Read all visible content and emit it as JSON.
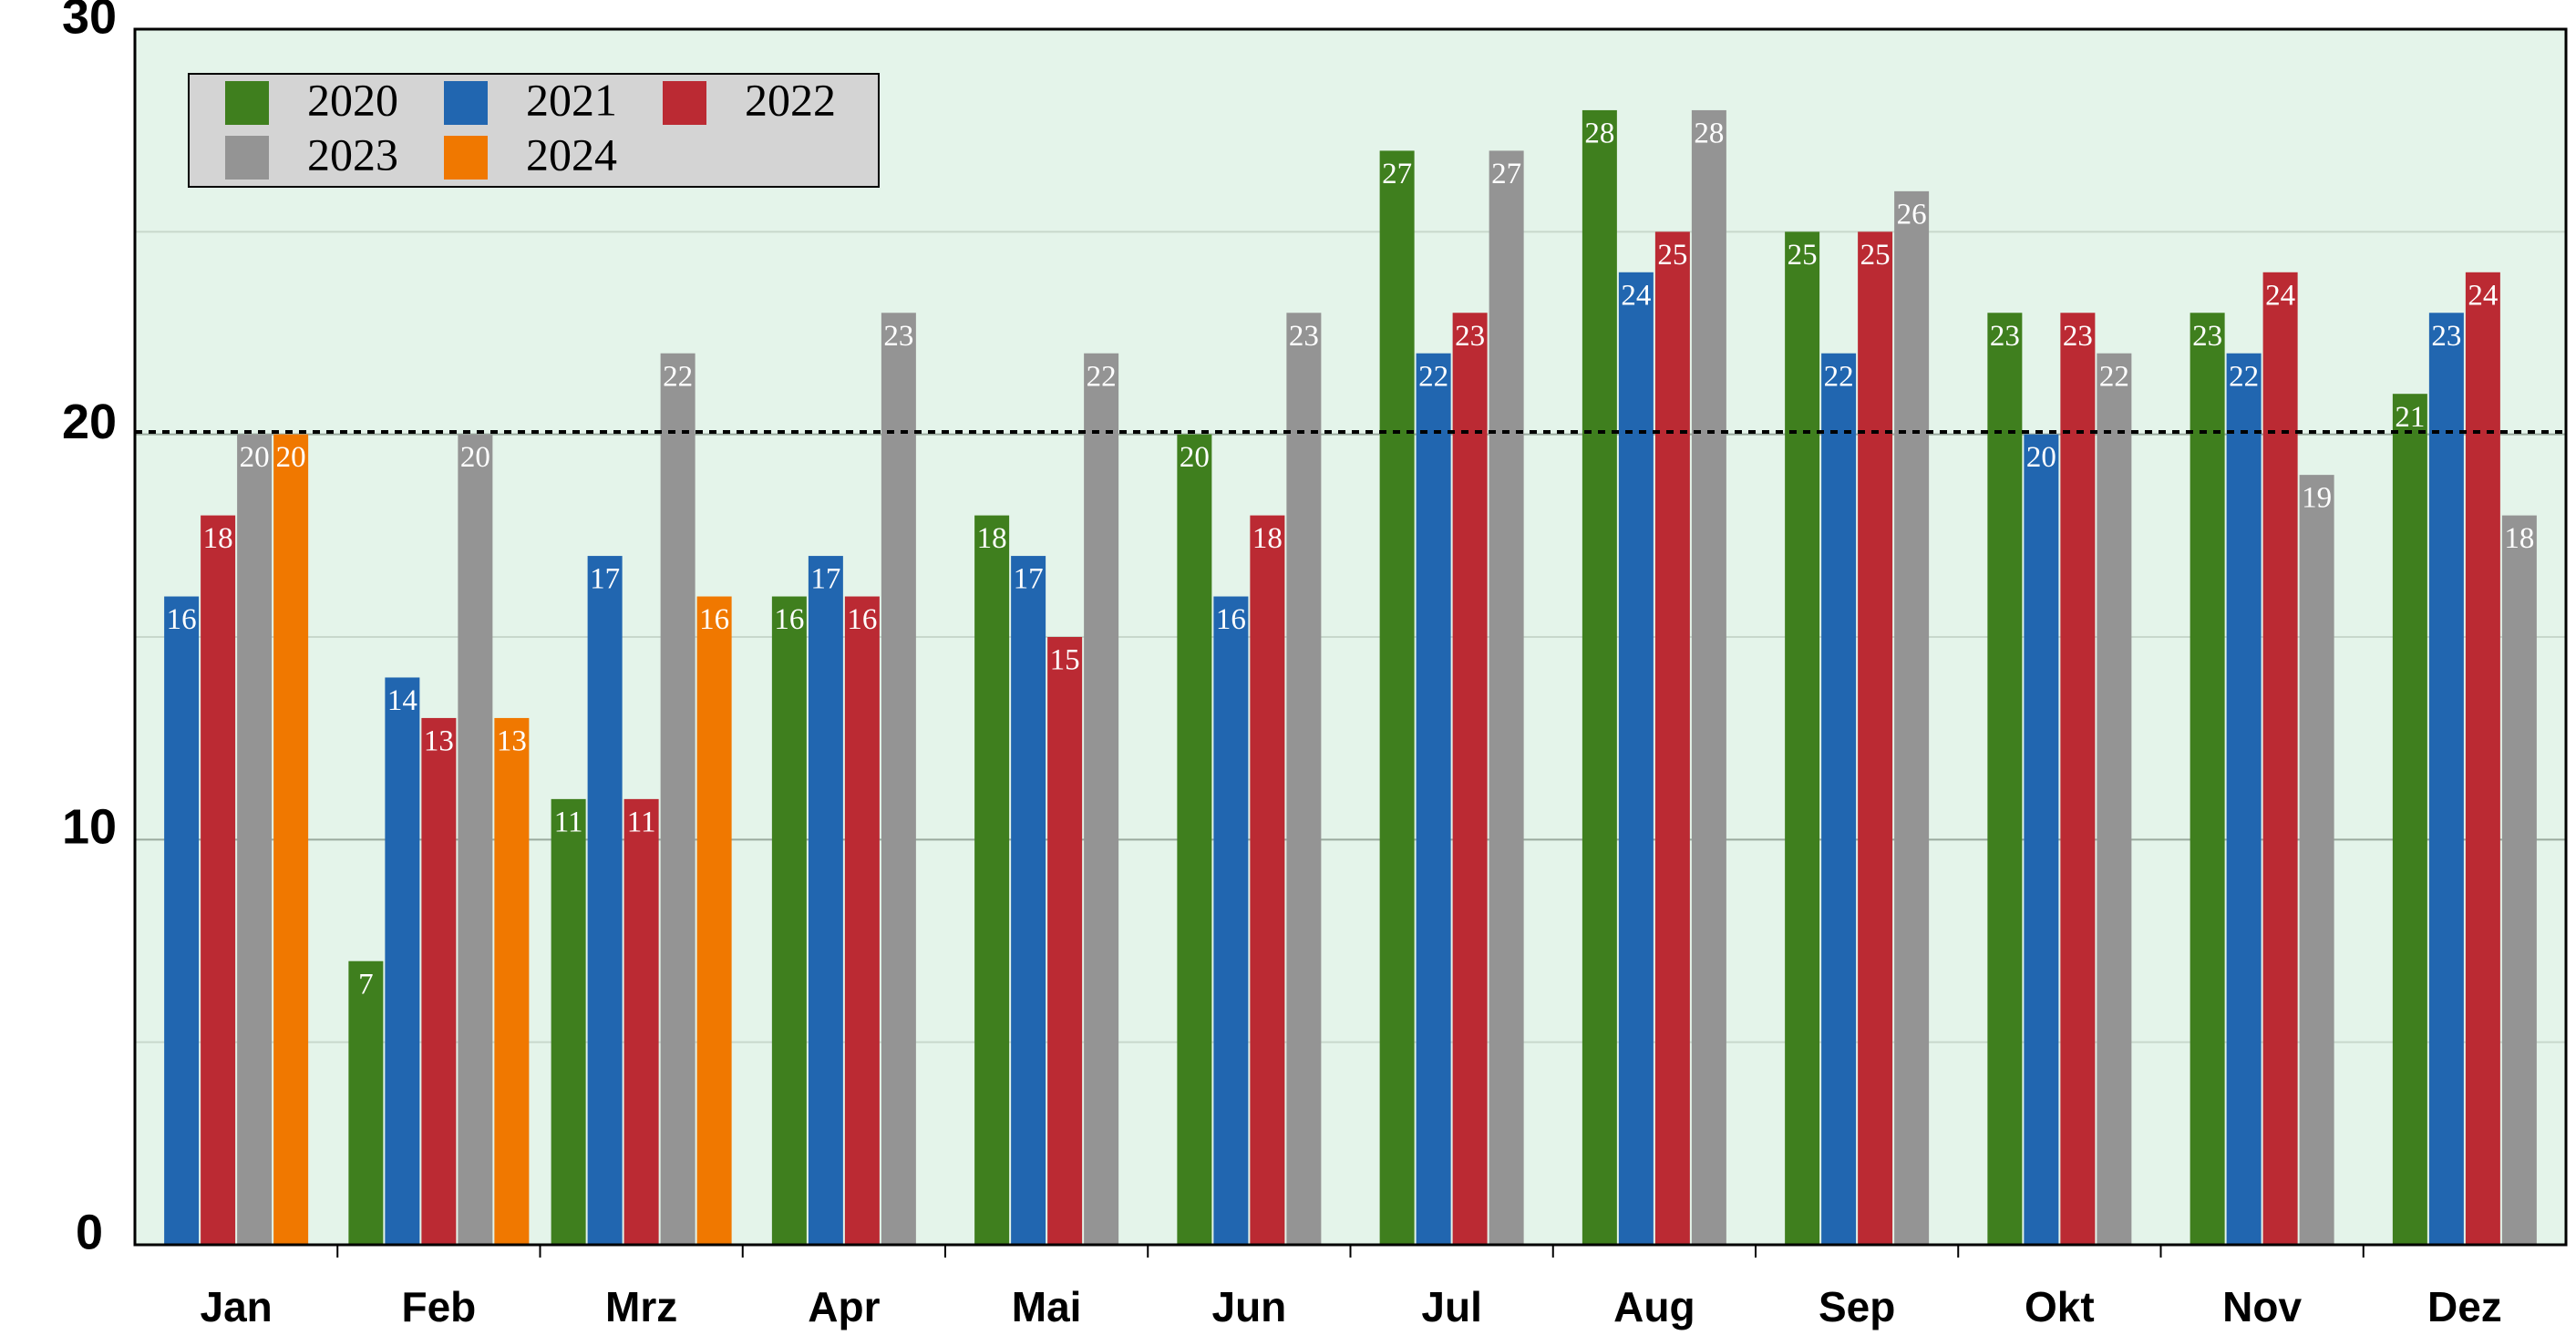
{
  "chart_data": {
    "type": "bar",
    "categories": [
      "Jan",
      "Feb",
      "Mrz",
      "Apr",
      "Mai",
      "Jun",
      "Jul",
      "Aug",
      "Sep",
      "Okt",
      "Nov",
      "Dez"
    ],
    "series": [
      {
        "name": "2020",
        "color": "#3f7f1e",
        "values": [
          null,
          7,
          11,
          16,
          18,
          20,
          27,
          28,
          25,
          23,
          23,
          21
        ]
      },
      {
        "name": "2021",
        "color": "#2166b0",
        "values": [
          16,
          14,
          17,
          17,
          17,
          16,
          22,
          24,
          22,
          20,
          22,
          23
        ]
      },
      {
        "name": "2022",
        "color": "#bb2a33",
        "values": [
          18,
          13,
          11,
          16,
          15,
          18,
          23,
          25,
          25,
          23,
          24,
          24
        ]
      },
      {
        "name": "2023",
        "color": "#949494",
        "values": [
          20,
          20,
          22,
          23,
          22,
          23,
          27,
          28,
          26,
          22,
          19,
          18
        ]
      },
      {
        "name": "2024",
        "color": "#f07800",
        "values": [
          20,
          13,
          16,
          null,
          null,
          null,
          null,
          null,
          null,
          null,
          null,
          null
        ]
      }
    ],
    "ylim": [
      0,
      30
    ],
    "yticks": [
      0,
      10,
      20,
      30
    ],
    "yminor": [
      5,
      15,
      25
    ],
    "mean_line": 20.06,
    "grid": true,
    "legend": "upper left",
    "background": "#e4f4ea"
  }
}
